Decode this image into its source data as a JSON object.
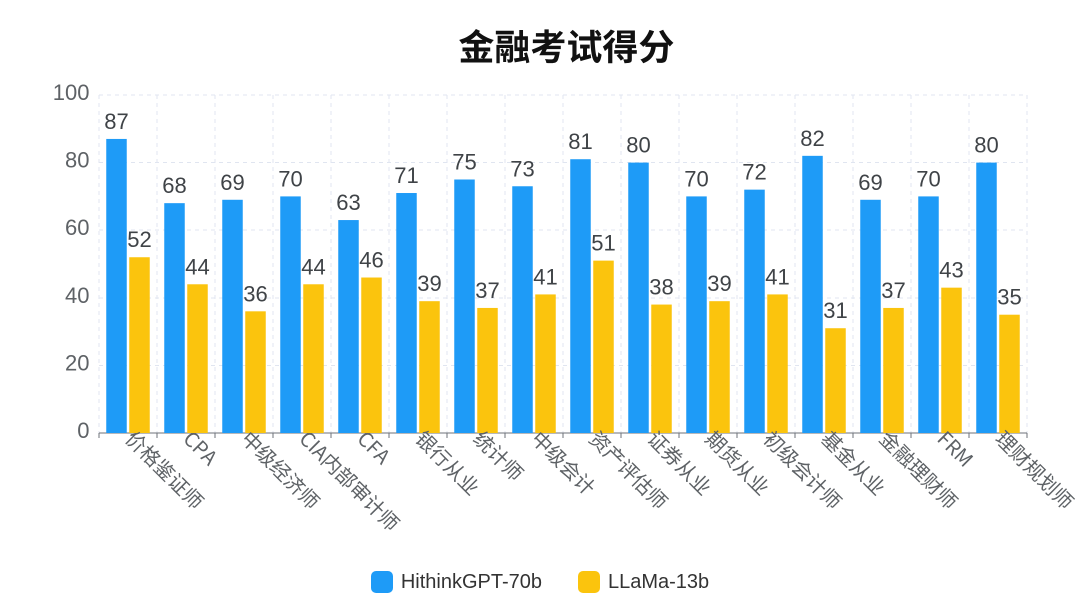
{
  "page": {
    "background": "#ffffff"
  },
  "chart_data": {
    "type": "bar",
    "title": "金融考试得分",
    "categories": [
      "价格鉴证师",
      "CPA",
      "中级经济师",
      "CIA内部审计师",
      "CFA",
      "银行从业",
      "统计师",
      "中级会计",
      "资产评估师",
      "证券从业",
      "期货从业",
      "初级会计师",
      "基金从业",
      "金融理财师",
      "FRM",
      "理财规划师"
    ],
    "series": [
      {
        "name": "HithinkGPT-70b",
        "color": "#1e9bf7",
        "values": [
          87,
          68,
          69,
          70,
          63,
          71,
          75,
          73,
          81,
          80,
          70,
          72,
          82,
          69,
          70,
          80
        ]
      },
      {
        "name": "LLaMa-13b",
        "color": "#fbc40d",
        "values": [
          52,
          44,
          36,
          44,
          46,
          39,
          37,
          41,
          51,
          38,
          39,
          41,
          31,
          37,
          43,
          35
        ]
      }
    ],
    "xlabel": "",
    "ylabel": "",
    "ylim": [
      0,
      100
    ],
    "yticks": [
      0,
      20,
      40,
      60,
      80,
      100
    ],
    "grid": "dashed",
    "legend_position": "bottom",
    "bar_value_labels": true,
    "style": {
      "title_color": "#111111",
      "axis_label_color": "#5e6266",
      "value_label_color": "#3f4347",
      "grid_line_color": "#e0e5f0",
      "axis_line_color": "#6e7279",
      "legend_text_color": "#333333"
    }
  }
}
